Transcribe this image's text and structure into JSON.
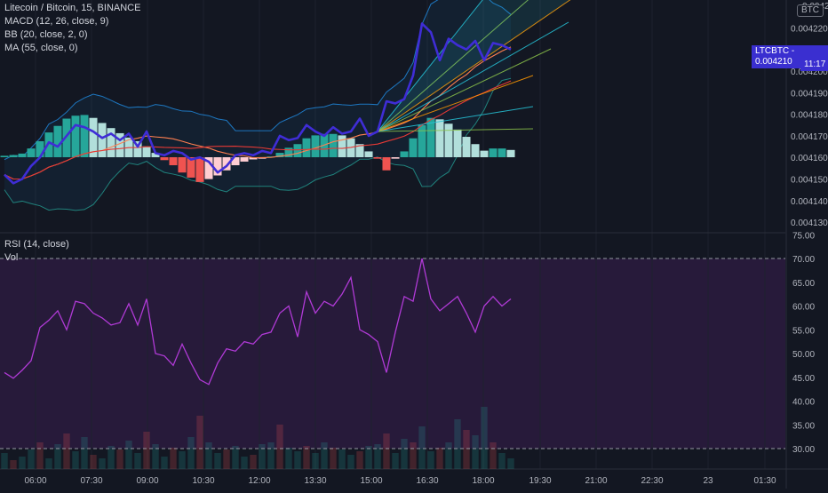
{
  "chart_header": {
    "symbol_title": "Litecoin / Bitcoin, 15, BINANCE",
    "indicators": [
      "MACD (12, 26, close, 9)",
      "BB (20, close, 2, 0)",
      "MA (55, close, 0)"
    ]
  },
  "price_axis": {
    "currency_badge": "BTC",
    "top_partial_label": "0.00420",
    "labels": [
      "0.004220",
      "0.004200",
      "0.004190",
      "0.004180",
      "0.004170",
      "0.004160",
      "0.004150",
      "0.004140",
      "0.004130"
    ],
    "last_price_label": "LTCBTC - 0.004210",
    "countdown": "11:17"
  },
  "rsi_panel": {
    "title": "RSI (14, close)",
    "volume_label": "Vol",
    "axis_labels": [
      "75.00",
      "70.00",
      "65.00",
      "60.00",
      "55.00",
      "50.00",
      "45.00",
      "40.00",
      "35.00",
      "30.00"
    ]
  },
  "time_axis": {
    "labels": [
      "06:00",
      "07:30",
      "09:00",
      "10:30",
      "12:00",
      "13:30",
      "15:00",
      "16:30",
      "18:00",
      "19:30",
      "21:00",
      "22:30",
      "23",
      "01:30"
    ]
  },
  "colors": {
    "background": "#131722",
    "price_line": "#3f2dd6",
    "rsi_line": "#b03ad6",
    "macd_pos_strong": "#26a69a",
    "macd_pos_weak": "#b2dfdb",
    "macd_neg_strong": "#ef5350",
    "macd_neg_weak": "#ffcdd2",
    "bb_band": "#2196f3",
    "ma_line": "#ff7f50",
    "fan_line": "#26c6da",
    "rsi_bg": "#2a1b3d"
  },
  "chart_data": [
    {
      "type": "line",
      "title": "Litecoin / Bitcoin, 15, BINANCE",
      "xlabel": "",
      "ylabel": "",
      "x": [
        0,
        1,
        2,
        3,
        4,
        5,
        6,
        7,
        8,
        9,
        10,
        11,
        12,
        13,
        14,
        15,
        16,
        17,
        18,
        19,
        20,
        21,
        22,
        23,
        24,
        25,
        26,
        27,
        28,
        29,
        30,
        31,
        32,
        33,
        34,
        35,
        36,
        37,
        38,
        39,
        40,
        41,
        42,
        43,
        44,
        45,
        46,
        47,
        48,
        49,
        50,
        51,
        52,
        53,
        54,
        55,
        56,
        57
      ],
      "series": [
        {
          "values": [
            0.004152,
            0.004148,
            0.00415,
            0.004156,
            0.00416,
            0.004167,
            0.004165,
            0.00417,
            0.004175,
            0.004174,
            0.004172,
            0.004169,
            0.004171,
            0.004168,
            0.004171,
            0.004165,
            0.004172,
            0.004162,
            0.004161,
            0.004163,
            0.004162,
            0.004159,
            0.00416,
            0.004158,
            0.004153,
            0.004156,
            0.004161,
            0.004162,
            0.004161,
            0.004163,
            0.004162,
            0.00417,
            0.004168,
            0.004169,
            0.004175,
            0.004172,
            0.00417,
            0.004174,
            0.004171,
            0.004172,
            0.004178,
            0.00417,
            0.004172,
            0.004186,
            0.004185,
            0.004187,
            0.004198,
            0.004222,
            0.004218,
            0.004205,
            0.004215,
            0.004212,
            0.00421,
            0.004214,
            0.004205,
            0.004213,
            0.004212,
            0.00421
          ]
        }
      ],
      "ylim": [
        0.00413,
        0.004225
      ]
    },
    {
      "type": "bar",
      "title": "MACD (12, 26, close, 9)",
      "categories": [
        0,
        1,
        2,
        3,
        4,
        5,
        6,
        7,
        8,
        9,
        10,
        11,
        12,
        13,
        14,
        15,
        16,
        17,
        18,
        19,
        20,
        21,
        22,
        23,
        24,
        25,
        26,
        27,
        28,
        29,
        30,
        31,
        32,
        33,
        34,
        35,
        36,
        37,
        38,
        39,
        40,
        41,
        42,
        43,
        44,
        45,
        46,
        47,
        48,
        49,
        50,
        51,
        52,
        53,
        54,
        55,
        56,
        57
      ],
      "values": [
        0.2,
        0.3,
        0.5,
        1.2,
        2.2,
        3.4,
        4.3,
        5.3,
        5.7,
        5.8,
        5.4,
        4.7,
        4.0,
        3.3,
        2.7,
        2.2,
        1.5,
        0.6,
        -0.4,
        -1.1,
        -2.1,
        -2.8,
        -3.4,
        -3.0,
        -2.5,
        -1.8,
        -1.1,
        -0.6,
        -0.3,
        -0.2,
        0.1,
        0.6,
        1.3,
        1.8,
        2.6,
        3.0,
        3.2,
        3.2,
        3.0,
        2.6,
        1.8,
        0.8,
        -0.2,
        -1.8,
        -0.2,
        0.8,
        2.6,
        4.4,
        5.4,
        5.2,
        4.6,
        3.8,
        2.8,
        1.8,
        0.9,
        1.2,
        1.2,
        1.0
      ],
      "ylim": [
        -4,
        7
      ]
    },
    {
      "type": "line",
      "title": "RSI (14, close)",
      "x": [
        0,
        1,
        2,
        3,
        4,
        5,
        6,
        7,
        8,
        9,
        10,
        11,
        12,
        13,
        14,
        15,
        16,
        17,
        18,
        19,
        20,
        21,
        22,
        23,
        24,
        25,
        26,
        27,
        28,
        29,
        30,
        31,
        32,
        33,
        34,
        35,
        36,
        37,
        38,
        39,
        40,
        41,
        42,
        43,
        44,
        45,
        46,
        47,
        48,
        49,
        50,
        51,
        52,
        53,
        54,
        55,
        56,
        57
      ],
      "series": [
        {
          "values": [
            46.0,
            44.8,
            46.5,
            48.5,
            55.5,
            57.0,
            59.0,
            55.0,
            61.0,
            60.5,
            58.5,
            57.5,
            56.0,
            56.5,
            60.5,
            56.0,
            61.5,
            50.0,
            49.5,
            47.5,
            52.0,
            48.0,
            44.5,
            43.5,
            48.0,
            51.0,
            50.5,
            52.5,
            52.0,
            54.0,
            54.5,
            58.5,
            60.0,
            53.5,
            63.0,
            58.5,
            61.0,
            60.0,
            62.5,
            66.0,
            55.0,
            54.0,
            52.5,
            46.0,
            54.5,
            62.0,
            61.0,
            70.0,
            61.5,
            59.0,
            60.5,
            62.0,
            58.5,
            54.5,
            60.0,
            62.0,
            60.0,
            61.5
          ]
        }
      ],
      "ylim": [
        28,
        75
      ]
    }
  ]
}
